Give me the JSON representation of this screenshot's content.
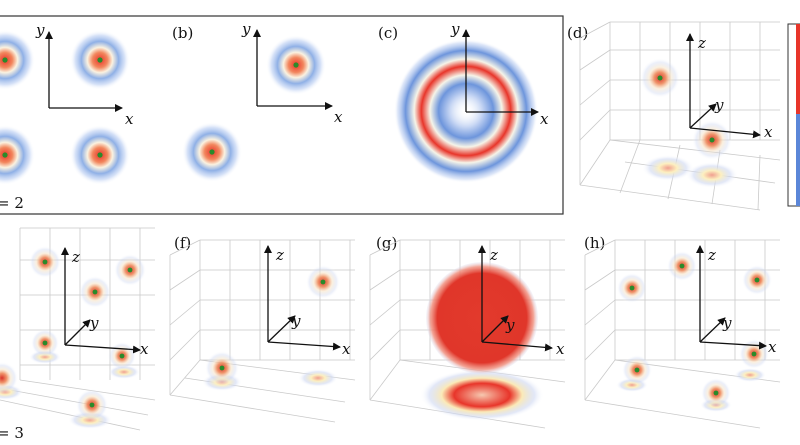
{
  "figure": {
    "panels": [
      {
        "id": "a",
        "label": "",
        "dim_label": "= 2",
        "axes": [
          "x",
          "y"
        ]
      },
      {
        "id": "b",
        "label": "(b)",
        "axes": [
          "x",
          "y"
        ]
      },
      {
        "id": "c",
        "label": "(c)",
        "axes": [
          "x",
          "y"
        ]
      },
      {
        "id": "d",
        "label": "(d)",
        "axes": [
          "x",
          "y",
          "z"
        ]
      },
      {
        "id": "e",
        "label": "",
        "dim_label": "= 3",
        "axes": [
          "x",
          "y",
          "z"
        ]
      },
      {
        "id": "f",
        "label": "(f)",
        "axes": [
          "x",
          "y",
          "z"
        ]
      },
      {
        "id": "g",
        "label": "(g)",
        "axes": [
          "x",
          "y",
          "z"
        ]
      },
      {
        "id": "h",
        "label": "(h)",
        "axes": [
          "x",
          "y",
          "z"
        ]
      }
    ],
    "colors": {
      "red": "#e8352a",
      "white": "#fdfbe9",
      "blue": "#5b86d8",
      "frame": "#333333",
      "grid": "#c9c9c9",
      "dot": "#2a8a2a"
    }
  }
}
